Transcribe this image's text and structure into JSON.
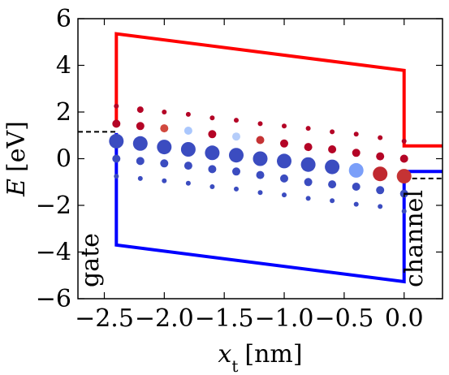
{
  "chart_data": {
    "type": "scatter",
    "xlabel": "x",
    "xlabel_subscript": "t",
    "xlabel_unit": "[nm]",
    "ylabel": "E",
    "ylabel_unit": "[eV]",
    "xlim": [
      -2.72,
      0.32
    ],
    "ylim": [
      -6,
      6
    ],
    "xticks": [
      -2.5,
      -2.0,
      -1.5,
      -1.0,
      -0.5,
      0.0
    ],
    "xtick_labels": [
      "−2.5",
      "−2.0",
      "−1.5",
      "−1.0",
      "−0.5",
      "0.0"
    ],
    "yticks": [
      -6,
      -4,
      -2,
      0,
      2,
      4,
      6
    ],
    "ytick_labels": [
      "−6",
      "−4",
      "−2",
      "0",
      "2",
      "4",
      "6"
    ],
    "grid": false,
    "annotations": [
      {
        "text": "gate",
        "x": -2.55,
        "y": -6,
        "rotation": -90
      },
      {
        "text": "channel",
        "x": 0.15,
        "y": -6,
        "rotation": -90
      }
    ],
    "series": [
      {
        "kind": "line",
        "color": "#ff0000",
        "x": [
          -2.4,
          -2.4,
          0.0,
          0.0,
          0.32
        ],
        "y": [
          1.5,
          5.35,
          3.78,
          0.55,
          0.55
        ]
      },
      {
        "kind": "line",
        "color": "#0000ff",
        "x": [
          -2.4,
          -2.4,
          0.0,
          0.0,
          0.32
        ],
        "y": [
          1.1,
          -3.7,
          -5.27,
          -0.55,
          -0.55
        ]
      },
      {
        "kind": "dashed-line",
        "color": "#000000",
        "x": [
          -2.72,
          -2.4
        ],
        "y": [
          1.15,
          1.15
        ]
      },
      {
        "kind": "dashed-line",
        "color": "#000000",
        "x": [
          0.0,
          0.32
        ],
        "y": [
          -0.85,
          -0.85
        ]
      },
      {
        "kind": "points",
        "points": [
          {
            "x": -2.4,
            "y": 2.25,
            "s": 3,
            "c": "#b40426"
          },
          {
            "x": -2.4,
            "y": 1.5,
            "s": 5,
            "c": "#b40426"
          },
          {
            "x": -2.4,
            "y": 0.75,
            "s": 9,
            "c": "#3b4cc0"
          },
          {
            "x": -2.4,
            "y": 0.0,
            "s": 5,
            "c": "#3b4cc0"
          },
          {
            "x": -2.4,
            "y": -0.75,
            "s": 3,
            "c": "#3b4cc0"
          },
          {
            "x": -2.2,
            "y": 2.1,
            "s": 4,
            "c": "#b40426"
          },
          {
            "x": -2.2,
            "y": 1.4,
            "s": 5,
            "c": "#b40426"
          },
          {
            "x": -2.2,
            "y": 0.65,
            "s": 9,
            "c": "#3b4cc0"
          },
          {
            "x": -2.2,
            "y": -0.1,
            "s": 5,
            "c": "#3b4cc0"
          },
          {
            "x": -2.2,
            "y": -0.85,
            "s": 3,
            "c": "#3b4cc0"
          },
          {
            "x": -2.0,
            "y": 2.0,
            "s": 3,
            "c": "#b40426"
          },
          {
            "x": -2.0,
            "y": 1.3,
            "s": 5,
            "c": "#d1493f"
          },
          {
            "x": -2.0,
            "y": 0.5,
            "s": 9,
            "c": "#3b4cc0"
          },
          {
            "x": -2.0,
            "y": -0.2,
            "s": 5,
            "c": "#3b4cc0"
          },
          {
            "x": -2.0,
            "y": -0.95,
            "s": 3,
            "c": "#3b4cc0"
          },
          {
            "x": -1.8,
            "y": 1.9,
            "s": 3,
            "c": "#b40426"
          },
          {
            "x": -1.8,
            "y": 1.2,
            "s": 5,
            "c": "#aac7fd"
          },
          {
            "x": -1.8,
            "y": 0.4,
            "s": 9,
            "c": "#3b4cc0"
          },
          {
            "x": -1.8,
            "y": -0.3,
            "s": 5,
            "c": "#3b4cc0"
          },
          {
            "x": -1.8,
            "y": -1.05,
            "s": 3,
            "c": "#3b4cc0"
          },
          {
            "x": -1.6,
            "y": 1.75,
            "s": 3,
            "c": "#b40426"
          },
          {
            "x": -1.6,
            "y": 1.05,
            "s": 5,
            "c": "#b40426"
          },
          {
            "x": -1.6,
            "y": 0.25,
            "s": 9,
            "c": "#3b4cc0"
          },
          {
            "x": -1.6,
            "y": -0.45,
            "s": 5,
            "c": "#3b4cc0"
          },
          {
            "x": -1.6,
            "y": -1.2,
            "s": 3,
            "c": "#3b4cc0"
          },
          {
            "x": -1.4,
            "y": 1.65,
            "s": 3,
            "c": "#b40426"
          },
          {
            "x": -1.4,
            "y": 0.95,
            "s": 5,
            "c": "#b5cdfa"
          },
          {
            "x": -1.4,
            "y": 0.15,
            "s": 9,
            "c": "#3b4cc0"
          },
          {
            "x": -1.4,
            "y": -0.55,
            "s": 5,
            "c": "#3b4cc0"
          },
          {
            "x": -1.4,
            "y": -1.3,
            "s": 3,
            "c": "#3b4cc0"
          },
          {
            "x": -1.2,
            "y": 1.5,
            "s": 3,
            "c": "#b40426"
          },
          {
            "x": -1.2,
            "y": 0.8,
            "s": 5,
            "c": "#c53334"
          },
          {
            "x": -1.2,
            "y": 0.0,
            "s": 9,
            "c": "#3b4cc0"
          },
          {
            "x": -1.2,
            "y": -0.7,
            "s": 5,
            "c": "#3b4cc0"
          },
          {
            "x": -1.2,
            "y": -1.45,
            "s": 3,
            "c": "#3b4cc0"
          },
          {
            "x": -1.0,
            "y": 1.4,
            "s": 3,
            "c": "#b40426"
          },
          {
            "x": -1.0,
            "y": 0.65,
            "s": 5,
            "c": "#b40426"
          },
          {
            "x": -1.0,
            "y": -0.1,
            "s": 9,
            "c": "#3b4cc0"
          },
          {
            "x": -1.0,
            "y": -0.85,
            "s": 5,
            "c": "#3b4cc0"
          },
          {
            "x": -1.0,
            "y": -1.55,
            "s": 3,
            "c": "#3b4cc0"
          },
          {
            "x": -0.8,
            "y": 1.3,
            "s": 3,
            "c": "#b40426"
          },
          {
            "x": -0.8,
            "y": 0.5,
            "s": 5,
            "c": "#b40426"
          },
          {
            "x": -0.8,
            "y": -0.25,
            "s": 9,
            "c": "#3b4cc0"
          },
          {
            "x": -0.8,
            "y": -1.0,
            "s": 5,
            "c": "#3b4cc0"
          },
          {
            "x": -0.8,
            "y": -1.7,
            "s": 3,
            "c": "#3b4cc0"
          },
          {
            "x": -0.6,
            "y": 1.15,
            "s": 3,
            "c": "#b40426"
          },
          {
            "x": -0.6,
            "y": 0.4,
            "s": 5,
            "c": "#b40426"
          },
          {
            "x": -0.6,
            "y": -0.35,
            "s": 9,
            "c": "#3b4cc0"
          },
          {
            "x": -0.6,
            "y": -1.1,
            "s": 5,
            "c": "#3b4cc0"
          },
          {
            "x": -0.6,
            "y": -1.8,
            "s": 3,
            "c": "#3b4cc0"
          },
          {
            "x": -0.4,
            "y": 1.05,
            "s": 3,
            "c": "#b40426"
          },
          {
            "x": -0.4,
            "y": 0.25,
            "s": 5,
            "c": "#b40426"
          },
          {
            "x": -0.4,
            "y": -0.5,
            "s": 9,
            "c": "#7b9ff9"
          },
          {
            "x": -0.4,
            "y": -1.2,
            "s": 5,
            "c": "#3b4cc0"
          },
          {
            "x": -0.4,
            "y": -1.95,
            "s": 3,
            "c": "#3b4cc0"
          },
          {
            "x": -0.2,
            "y": 0.9,
            "s": 3,
            "c": "#b40426"
          },
          {
            "x": -0.2,
            "y": 0.1,
            "s": 5,
            "c": "#b40426"
          },
          {
            "x": -0.2,
            "y": -0.65,
            "s": 9,
            "c": "#c0282f"
          },
          {
            "x": -0.2,
            "y": -1.35,
            "s": 5,
            "c": "#3b4cc0"
          },
          {
            "x": -0.2,
            "y": -2.05,
            "s": 3,
            "c": "#3b4cc0"
          },
          {
            "x": 0.0,
            "y": 0.75,
            "s": 3,
            "c": "#b40426"
          },
          {
            "x": 0.0,
            "y": 0.0,
            "s": 5,
            "c": "#b40426"
          },
          {
            "x": 0.0,
            "y": -0.75,
            "s": 9,
            "c": "#c53334"
          },
          {
            "x": 0.0,
            "y": -1.5,
            "s": 5,
            "c": "#3b4cc0"
          },
          {
            "x": 0.0,
            "y": -2.25,
            "s": 3,
            "c": "#3b4cc0"
          }
        ]
      }
    ]
  }
}
